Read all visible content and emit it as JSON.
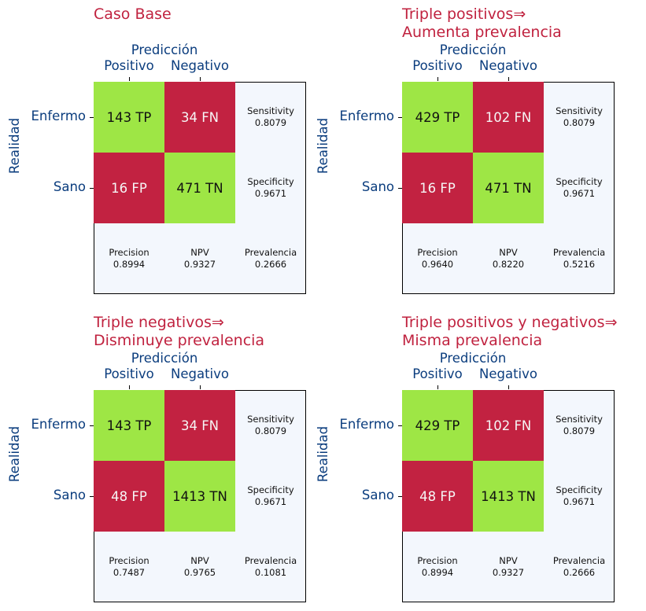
{
  "chart_data": [
    {
      "type": "table",
      "title": "Caso Base",
      "subtitle": "",
      "xlabel": "Predicción",
      "ylabel": "Realidad",
      "col_labels": [
        "Positivo",
        "Negativo"
      ],
      "row_labels": [
        "Enfermo",
        "Sano"
      ],
      "cells": [
        [
          "143 TP",
          "34 FN"
        ],
        [
          "16 FP",
          "471 TN"
        ]
      ],
      "values": [
        [
          143,
          34
        ],
        [
          16,
          471
        ]
      ],
      "sensitivity": {
        "label": "Sensitivity",
        "value": "0.8079"
      },
      "specificity": {
        "label": "Specificity",
        "value": "0.9671"
      },
      "precision": {
        "label": "Precision",
        "value": "0.8994"
      },
      "npv": {
        "label": "NPV",
        "value": "0.9327"
      },
      "prevalencia": {
        "label": "Prevalencia",
        "value": "0.2666"
      },
      "grid": false
    },
    {
      "type": "table",
      "title": "Triple positivos⇒",
      "subtitle": "Aumenta prevalencia",
      "xlabel": "Predicción",
      "ylabel": "Realidad",
      "col_labels": [
        "Positivo",
        "Negativo"
      ],
      "row_labels": [
        "Enfermo",
        "Sano"
      ],
      "cells": [
        [
          "429 TP",
          "102 FN"
        ],
        [
          "16 FP",
          "471 TN"
        ]
      ],
      "values": [
        [
          429,
          102
        ],
        [
          16,
          471
        ]
      ],
      "sensitivity": {
        "label": "Sensitivity",
        "value": "0.8079"
      },
      "specificity": {
        "label": "Specificity",
        "value": "0.9671"
      },
      "precision": {
        "label": "Precision",
        "value": "0.9640"
      },
      "npv": {
        "label": "NPV",
        "value": "0.8220"
      },
      "prevalencia": {
        "label": "Prevalencia",
        "value": "0.5216"
      },
      "grid": false
    },
    {
      "type": "table",
      "title": "Triple negativos⇒",
      "subtitle": "Disminuye prevalencia",
      "xlabel": "Predicción",
      "ylabel": "Realidad",
      "col_labels": [
        "Positivo",
        "Negativo"
      ],
      "row_labels": [
        "Enfermo",
        "Sano"
      ],
      "cells": [
        [
          "143 TP",
          "34 FN"
        ],
        [
          "48 FP",
          "1413 TN"
        ]
      ],
      "values": [
        [
          143,
          34
        ],
        [
          48,
          1413
        ]
      ],
      "sensitivity": {
        "label": "Sensitivity",
        "value": "0.8079"
      },
      "specificity": {
        "label": "Specificity",
        "value": "0.9671"
      },
      "precision": {
        "label": "Precision",
        "value": "0.7487"
      },
      "npv": {
        "label": "NPV",
        "value": "0.9765"
      },
      "prevalencia": {
        "label": "Prevalencia",
        "value": "0.1081"
      },
      "grid": false
    },
    {
      "type": "table",
      "title": "Triple positivos y negativos⇒",
      "subtitle": "Misma prevalencia",
      "xlabel": "Predicción",
      "ylabel": "Realidad",
      "col_labels": [
        "Positivo",
        "Negativo"
      ],
      "row_labels": [
        "Enfermo",
        "Sano"
      ],
      "cells": [
        [
          "429 TP",
          "102 FN"
        ],
        [
          "48 FP",
          "1413 TN"
        ]
      ],
      "values": [
        [
          429,
          102
        ],
        [
          48,
          1413
        ]
      ],
      "sensitivity": {
        "label": "Sensitivity",
        "value": "0.8079"
      },
      "specificity": {
        "label": "Specificity",
        "value": "0.9671"
      },
      "precision": {
        "label": "Precision",
        "value": "0.8994"
      },
      "npv": {
        "label": "NPV",
        "value": "0.9327"
      },
      "prevalencia": {
        "label": "Prevalencia",
        "value": "0.2666"
      },
      "grid": false
    }
  ],
  "colors": {
    "title": "#c0223f",
    "label": "#0b3d7e",
    "correct_cell": "#9ee645",
    "error_cell": "#c22241",
    "metric_background": "#f3f7fd"
  }
}
